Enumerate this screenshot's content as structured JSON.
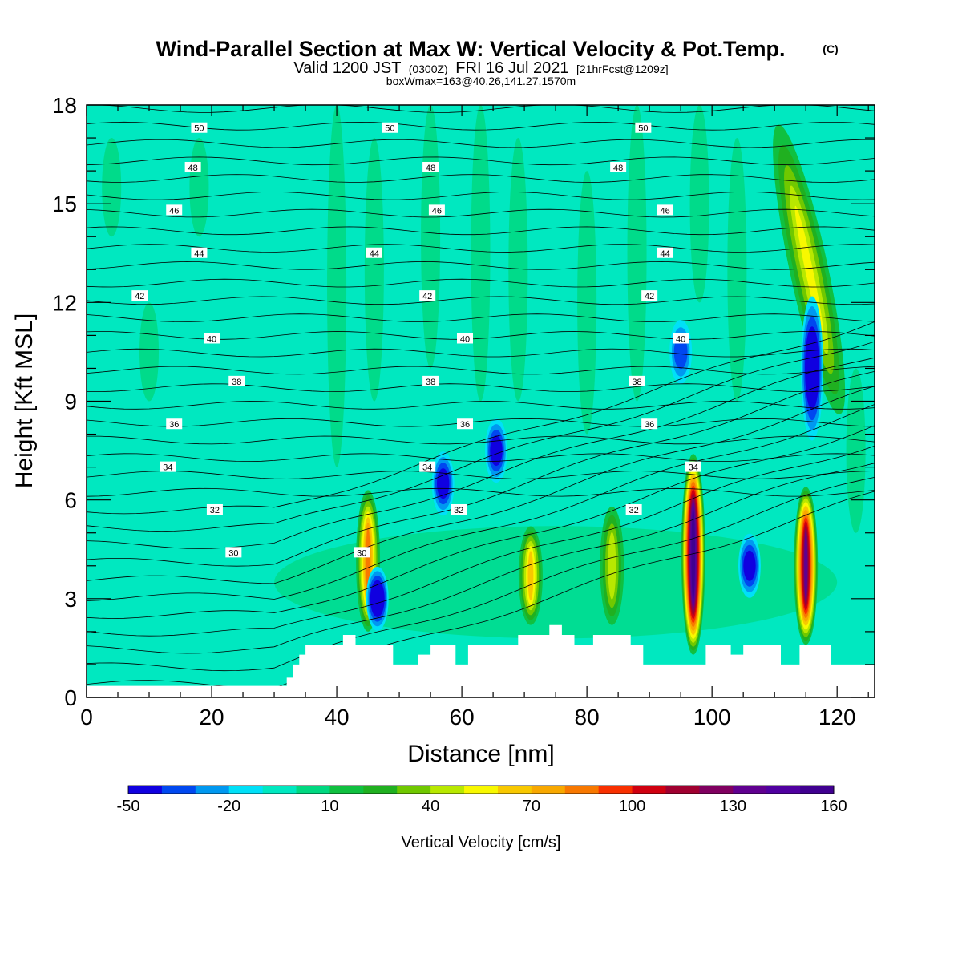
{
  "header": {
    "title": "Wind-Parallel Section at Max W: Vertical Velocity & Pot.Temp.",
    "copyright": "(C)",
    "valid_prefix": "Valid 1200 JST",
    "valid_utc": "(0300Z)",
    "valid_date": "FRI 16 Jul 2021",
    "forecast": "[21hrFcst@1209z]",
    "boxwmax": "boxWmax=163@40.26,141.27,1570m"
  },
  "chart_data": {
    "type": "heatmap",
    "xlabel": "Distance [nm]",
    "ylabel": "Height [Kft MSL]",
    "xlim": [
      0,
      126
    ],
    "ylim": [
      0,
      18
    ],
    "xticks": [
      "0",
      "20",
      "40",
      "60",
      "80",
      "100",
      "120"
    ],
    "yticks": [
      "0",
      "3",
      "6",
      "9",
      "12",
      "15",
      "18"
    ],
    "background_value_cm_s": 0,
    "updraft_cores": [
      {
        "x": 45,
        "base_kft": 2.0,
        "top_kft": 6.3,
        "peak_cm_s": 80
      },
      {
        "x": 71,
        "base_kft": 2.2,
        "top_kft": 5.2,
        "peak_cm_s": 60
      },
      {
        "x": 84,
        "base_kft": 2.2,
        "top_kft": 5.8,
        "peak_cm_s": 45
      },
      {
        "x": 97,
        "base_kft": 1.3,
        "top_kft": 7.4,
        "peak_cm_s": 163
      },
      {
        "x": 115,
        "base_kft": 1.6,
        "top_kft": 6.4,
        "peak_cm_s": 130
      }
    ],
    "slanted_updraft": {
      "x_bottom": 117,
      "x_top": 114,
      "base_kft": 8.5,
      "top_kft": 17.5,
      "peak_cm_s": 50
    },
    "downdraft_cores": [
      {
        "x": 46.5,
        "kft": 3.0,
        "min_cm_s": -50
      },
      {
        "x": 57,
        "kft": 6.5,
        "min_cm_s": -40
      },
      {
        "x": 65.5,
        "kft": 7.5,
        "min_cm_s": -40
      },
      {
        "x": 95,
        "kft": 10.5,
        "min_cm_s": -30
      },
      {
        "x": 106,
        "kft": 4.0,
        "min_cm_s": -40
      },
      {
        "x": 116,
        "kft": 10.0,
        "min_cm_s": -50
      }
    ],
    "theta_contour_labels": [
      {
        "value": "50",
        "x": [
          18,
          48.5,
          89
        ]
      },
      {
        "value": "48",
        "x": [
          17,
          55,
          85
        ]
      },
      {
        "value": "46",
        "x": [
          14,
          56,
          92.5
        ]
      },
      {
        "value": "44",
        "x": [
          18,
          46,
          92.5
        ]
      },
      {
        "value": "42",
        "x": [
          8.5,
          54.5,
          90
        ]
      },
      {
        "value": "40",
        "x": [
          20,
          60.5,
          95
        ]
      },
      {
        "value": "38",
        "x": [
          24,
          55,
          88
        ]
      },
      {
        "value": "36",
        "x": [
          14,
          60.5,
          90
        ]
      },
      {
        "value": "34",
        "x": [
          13,
          54.5,
          97
        ]
      },
      {
        "value": "32",
        "x": [
          20.5,
          59.5,
          87.5
        ]
      },
      {
        "value": "30",
        "x": [
          23.5,
          44
        ]
      }
    ],
    "colorbar": {
      "label": "Vertical Velocity [cm/s]",
      "tick_labels": [
        "-50",
        "-20",
        "10",
        "40",
        "70",
        "100",
        "130",
        "160"
      ],
      "min": -50,
      "max": 160,
      "step": 10,
      "colors": [
        "#1000e0",
        "#0048f0",
        "#0098f0",
        "#00e0f8",
        "#00e8c0",
        "#00d880",
        "#10c040",
        "#20b020",
        "#70c800",
        "#b8e800",
        "#f8f800",
        "#f8c800",
        "#f8a800",
        "#f87800",
        "#f83000",
        "#d00010",
        "#a00030",
        "#800060",
        "#600090",
        "#5000a0",
        "#400090"
      ]
    }
  }
}
